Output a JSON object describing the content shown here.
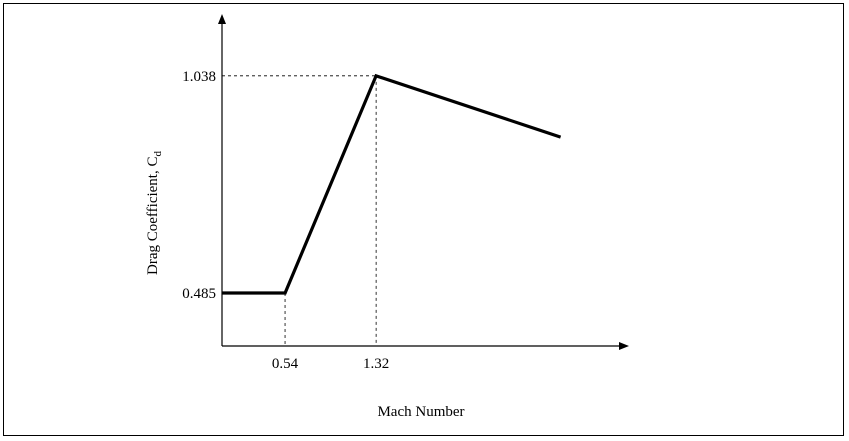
{
  "chart_data": {
    "type": "line",
    "title": "",
    "xlabel": "Mach Number",
    "ylabel": "Drag Coefficient, C",
    "ylabel_subscript": "d",
    "x_ticks": [
      "0.54",
      "1.32"
    ],
    "y_ticks": [
      "0.485",
      "1.038"
    ],
    "series": [
      {
        "x": [
          0,
          0.54,
          1.32,
          2.9
        ],
        "y": [
          0.485,
          0.485,
          1.038,
          0.882
        ]
      }
    ],
    "xlim": [
      0,
      3.4
    ],
    "ylim": [
      0.35,
      1.17
    ],
    "grid": false,
    "reference_lines": [
      {
        "x": 0.54,
        "y": 0.485
      },
      {
        "x": 1.32,
        "y": 1.038
      }
    ],
    "colors": {
      "line": "#000000",
      "axis": "#000000"
    }
  }
}
